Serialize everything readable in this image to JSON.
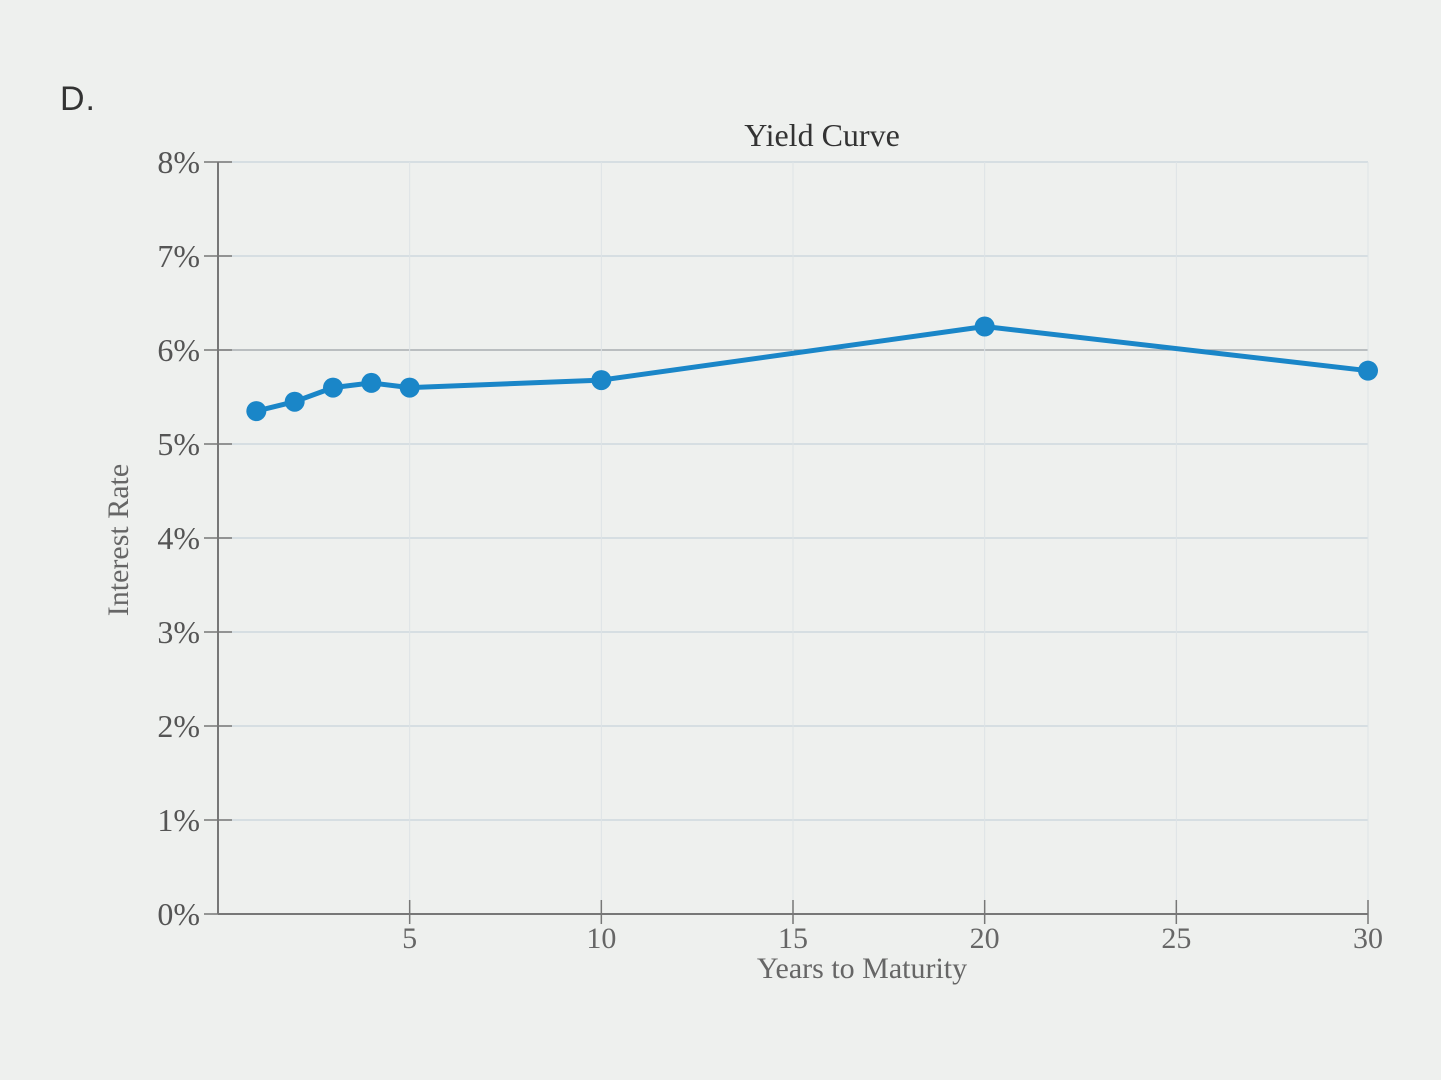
{
  "option_label": "D.",
  "chart_data": {
    "type": "line",
    "title": "Yield Curve",
    "xlabel": "Years to Maturity",
    "ylabel": "Interest Rate",
    "xlim": [
      0,
      30
    ],
    "ylim": [
      0,
      8
    ],
    "x_ticks": [
      5,
      10,
      15,
      20,
      25,
      30
    ],
    "x_tick_labels": [
      "5",
      "10",
      "15",
      "20",
      "25",
      "30"
    ],
    "y_ticks": [
      0,
      1,
      2,
      3,
      4,
      5,
      6,
      7,
      8
    ],
    "y_tick_labels": [
      "0%",
      "1%",
      "2%",
      "3%",
      "4%",
      "5%",
      "6%",
      "7%",
      "8%"
    ],
    "grid": true,
    "series": [
      {
        "color": "#1a86c8",
        "x": [
          1,
          2,
          3,
          4,
          5,
          10,
          20,
          30
        ],
        "y": [
          5.35,
          5.45,
          5.6,
          5.65,
          5.6,
          5.68,
          6.25,
          5.78
        ]
      }
    ]
  }
}
